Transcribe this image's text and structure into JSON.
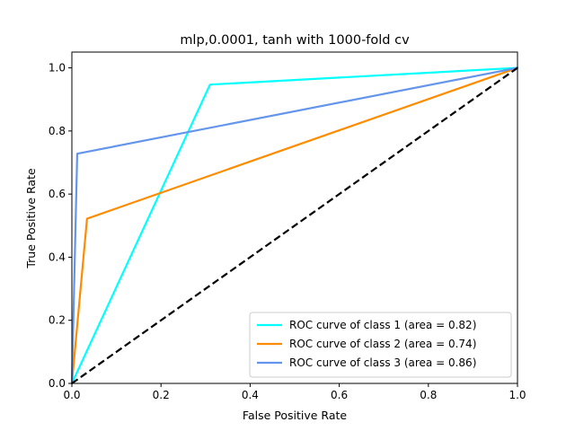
{
  "chart_data": {
    "type": "line",
    "title": "mlp,0.0001, tanh with 1000-fold cv",
    "xlabel": "False Positive Rate",
    "ylabel": "True Positive Rate",
    "xlim": [
      0.0,
      1.0
    ],
    "ylim": [
      0.0,
      1.05
    ],
    "xticks": [
      0.0,
      0.2,
      0.4,
      0.6,
      0.8,
      1.0
    ],
    "yticks": [
      0.0,
      0.2,
      0.4,
      0.6,
      0.8,
      1.0
    ],
    "xtick_labels": [
      "0.0",
      "0.2",
      "0.4",
      "0.6",
      "0.8",
      "1.0"
    ],
    "ytick_labels": [
      "0.0",
      "0.2",
      "0.4",
      "0.6",
      "0.8",
      "1.0"
    ],
    "grid": false,
    "legend_position": "lower-right",
    "series": [
      {
        "name": "ROC curve of class 1 (area = 0.82)",
        "color": "#00ffff",
        "x": [
          0.0,
          0.31,
          1.0
        ],
        "y": [
          0.0,
          0.947,
          1.0
        ]
      },
      {
        "name": "ROC curve of class 2 (area = 0.74)",
        "color": "#ff8c00",
        "x": [
          0.0,
          0.034,
          1.0
        ],
        "y": [
          0.0,
          0.522,
          1.0
        ]
      },
      {
        "name": "ROC curve of class 3 (area = 0.86)",
        "color": "#6495ed",
        "x": [
          0.0,
          0.012,
          1.0
        ],
        "y": [
          0.0,
          0.728,
          1.0
        ]
      }
    ],
    "reference_line": {
      "color": "#000000",
      "style": "dashed",
      "x": [
        0.0,
        1.0
      ],
      "y": [
        0.0,
        1.0
      ]
    }
  }
}
